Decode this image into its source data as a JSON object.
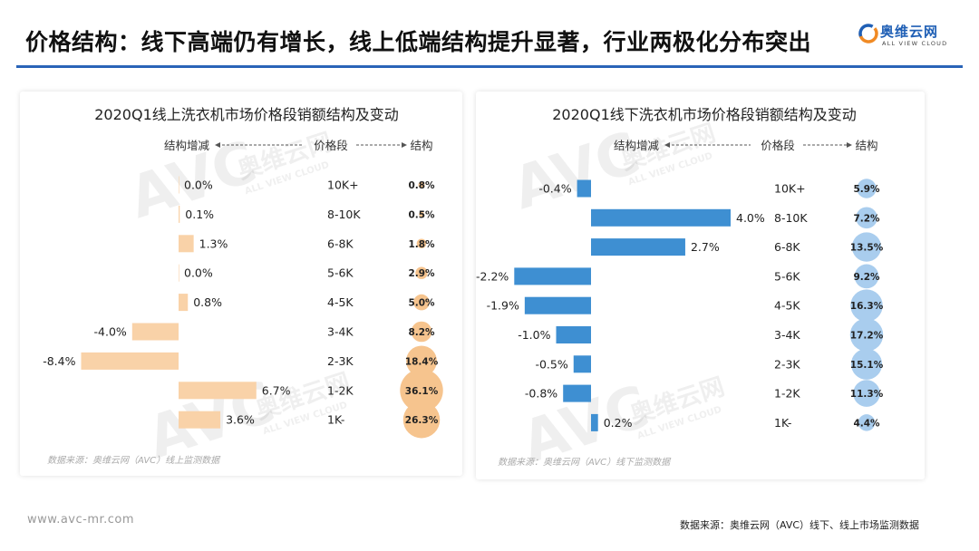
{
  "page": {
    "title": "价格结构：线下高端仍有增长，线上低端结构提升显著，行业两极化分布突出",
    "website": "www.avc-mr.com",
    "footer_source": "数据来源：奥维云网（AVC）线下、线上市场监测数据"
  },
  "logo": {
    "name_cn": "奥维云网",
    "name_en": "ALL VIEW CLOUD",
    "watermark_text": "AVC",
    "watermark_cn": "奥维云网"
  },
  "colors": {
    "accent": "#2a64b8",
    "online_bar": "#f9d2a8",
    "online_bubble": "#f6c48e",
    "offline_bar": "#3e8fd2",
    "offline_bubble": "#a9cdee"
  },
  "chart_data": [
    {
      "type": "bar",
      "title": "2020Q1线上洗衣机市场价格段销额结构及变动",
      "header_change": "结构增减",
      "header_category": "价格段",
      "header_share": "结构",
      "categories": [
        "10K+",
        "8-10K",
        "6-8K",
        "5-6K",
        "4-5K",
        "3-4K",
        "2-3K",
        "1-2K",
        "1K-"
      ],
      "change_labels": [
        "0.0%",
        "0.1%",
        "1.3%",
        "0.0%",
        "0.8%",
        "-4.0%",
        "-8.4%",
        "6.7%",
        "3.6%"
      ],
      "change": [
        0.0,
        0.1,
        1.3,
        0.0,
        0.8,
        -4.0,
        -8.4,
        6.7,
        3.6
      ],
      "share_labels": [
        "0.8%",
        "0.5%",
        "1.8%",
        "2.9%",
        "5.0%",
        "8.2%",
        "18.4%",
        "36.1%",
        "26.3%"
      ],
      "share": [
        0.8,
        0.5,
        1.8,
        2.9,
        5.0,
        8.2,
        18.4,
        36.1,
        26.3
      ],
      "source": "数据来源：奥维云网（AVC）线上监测数据"
    },
    {
      "type": "bar",
      "title": "2020Q1线下洗衣机市场价格段销额结构及变动",
      "header_change": "结构增减",
      "header_category": "价格段",
      "header_share": "结构",
      "categories": [
        "10K+",
        "8-10K",
        "6-8K",
        "5-6K",
        "4-5K",
        "3-4K",
        "2-3K",
        "1-2K",
        "1K-"
      ],
      "change_labels": [
        "-0.4%",
        "4.0%",
        "2.7%",
        "-2.2%",
        "-1.9%",
        "-1.0%",
        "-0.5%",
        "-0.8%",
        "0.2%"
      ],
      "change": [
        -0.4,
        4.0,
        2.7,
        -2.2,
        -1.9,
        -1.0,
        -0.5,
        -0.8,
        0.2
      ],
      "share_labels": [
        "5.9%",
        "7.2%",
        "13.5%",
        "9.2%",
        "16.3%",
        "17.2%",
        "15.1%",
        "11.3%",
        "4.4%"
      ],
      "share": [
        5.9,
        7.2,
        13.5,
        9.2,
        16.3,
        17.2,
        15.1,
        11.3,
        4.4
      ],
      "source": "数据来源：奥维云网（AVC）线下监测数据"
    }
  ]
}
